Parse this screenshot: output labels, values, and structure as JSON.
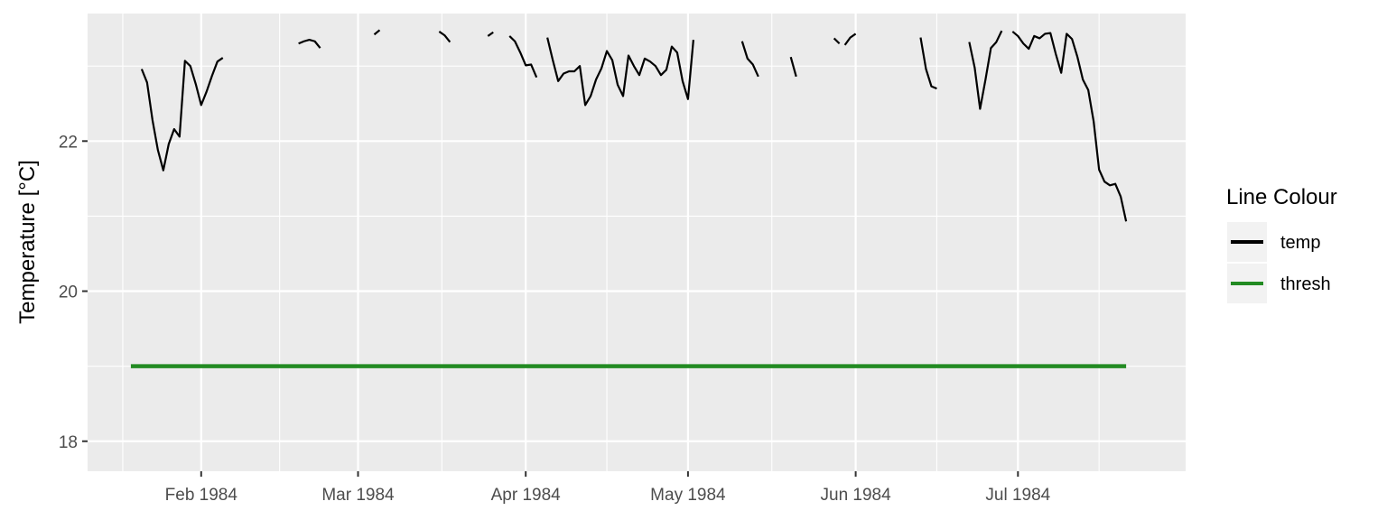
{
  "chart_data": {
    "type": "line",
    "title": "",
    "xlabel": "",
    "ylabel": "Temperature [°C]",
    "x_ticks": [
      {
        "date": "1984-02-01",
        "label": "Feb 1984"
      },
      {
        "date": "1984-03-01",
        "label": "Mar 1984"
      },
      {
        "date": "1984-04-01",
        "label": "Apr 1984"
      },
      {
        "date": "1984-05-01",
        "label": "May 1984"
      },
      {
        "date": "1984-06-01",
        "label": "Jun 1984"
      },
      {
        "date": "1984-07-01",
        "label": "Jul 1984"
      }
    ],
    "xlim": [
      "1984-01-11",
      "1984-08-01"
    ],
    "y_ticks": [
      18,
      20,
      22
    ],
    "ylim": [
      17.6,
      23.7
    ],
    "grid": true,
    "legend": {
      "title": "Line Colour",
      "position": "right",
      "entries": [
        {
          "label": "temp",
          "color": "#000000"
        },
        {
          "label": "thresh",
          "color": "#228b22"
        }
      ]
    },
    "series": [
      {
        "name": "temp",
        "color": "#000000",
        "segments": [
          [
            [
              "1984-01-21",
              22.96
            ],
            [
              "1984-01-22",
              22.78
            ],
            [
              "1984-01-23",
              22.28
            ],
            [
              "1984-01-24",
              21.88
            ],
            [
              "1984-01-25",
              21.61
            ],
            [
              "1984-01-26",
              21.96
            ],
            [
              "1984-01-27",
              22.16
            ],
            [
              "1984-01-28",
              22.06
            ],
            [
              "1984-01-29",
              23.07
            ],
            [
              "1984-01-30",
              23.0
            ],
            [
              "1984-01-31",
              22.76
            ],
            [
              "1984-02-01",
              22.48
            ],
            [
              "1984-02-02",
              22.66
            ],
            [
              "1984-02-03",
              22.87
            ],
            [
              "1984-02-04",
              23.06
            ],
            [
              "1984-02-05",
              23.11
            ]
          ],
          [
            [
              "1984-02-19",
              23.3
            ],
            [
              "1984-02-20",
              23.33
            ],
            [
              "1984-02-21",
              23.35
            ],
            [
              "1984-02-22",
              23.33
            ],
            [
              "1984-02-23",
              23.24
            ]
          ],
          [
            [
              "1984-03-04",
              23.42
            ],
            [
              "1984-03-05",
              23.48
            ]
          ],
          [
            [
              "1984-03-16",
              23.46
            ],
            [
              "1984-03-17",
              23.41
            ],
            [
              "1984-03-18",
              23.32
            ]
          ],
          [
            [
              "1984-03-25",
              23.4
            ],
            [
              "1984-03-26",
              23.45
            ]
          ],
          [
            [
              "1984-03-29",
              23.4
            ],
            [
              "1984-03-30",
              23.33
            ],
            [
              "1984-03-31",
              23.18
            ],
            [
              "1984-04-01",
              23.01
            ],
            [
              "1984-04-02",
              23.02
            ],
            [
              "1984-04-03",
              22.85
            ]
          ],
          [
            [
              "1984-04-05",
              23.38
            ],
            [
              "1984-04-06",
              23.08
            ],
            [
              "1984-04-07",
              22.8
            ],
            [
              "1984-04-08",
              22.9
            ],
            [
              "1984-04-09",
              22.93
            ],
            [
              "1984-04-10",
              22.93
            ],
            [
              "1984-04-11",
              23.0
            ],
            [
              "1984-04-12",
              22.48
            ],
            [
              "1984-04-13",
              22.6
            ],
            [
              "1984-04-14",
              22.82
            ],
            [
              "1984-04-15",
              22.97
            ],
            [
              "1984-04-16",
              23.2
            ],
            [
              "1984-04-17",
              23.08
            ],
            [
              "1984-04-18",
              22.75
            ],
            [
              "1984-04-19",
              22.6
            ],
            [
              "1984-04-20",
              23.14
            ],
            [
              "1984-04-21",
              23.0
            ],
            [
              "1984-04-22",
              22.88
            ],
            [
              "1984-04-23",
              23.1
            ],
            [
              "1984-04-24",
              23.06
            ],
            [
              "1984-04-25",
              23.0
            ],
            [
              "1984-04-26",
              22.88
            ],
            [
              "1984-04-27",
              22.95
            ],
            [
              "1984-04-28",
              23.26
            ],
            [
              "1984-04-29",
              23.18
            ],
            [
              "1984-04-30",
              22.8
            ],
            [
              "1984-05-01",
              22.56
            ],
            [
              "1984-05-02",
              23.35
            ]
          ],
          [
            [
              "1984-05-11",
              23.33
            ],
            [
              "1984-05-12",
              23.1
            ],
            [
              "1984-05-13",
              23.02
            ],
            [
              "1984-05-14",
              22.86
            ]
          ],
          [
            [
              "1984-05-20",
              23.12
            ],
            [
              "1984-05-21",
              22.86
            ]
          ],
          [
            [
              "1984-05-28",
              23.37
            ],
            [
              "1984-05-29",
              23.3
            ]
          ],
          [
            [
              "1984-05-30",
              23.28
            ],
            [
              "1984-05-31",
              23.38
            ],
            [
              "1984-06-01",
              23.43
            ]
          ],
          [
            [
              "1984-06-13",
              23.38
            ],
            [
              "1984-06-14",
              22.96
            ],
            [
              "1984-06-15",
              22.73
            ],
            [
              "1984-06-16",
              22.7
            ]
          ],
          [
            [
              "1984-06-22",
              23.32
            ],
            [
              "1984-06-23",
              22.98
            ],
            [
              "1984-06-24",
              22.43
            ],
            [
              "1984-06-25",
              22.82
            ],
            [
              "1984-06-26",
              23.24
            ],
            [
              "1984-06-27",
              23.32
            ],
            [
              "1984-06-28",
              23.47
            ]
          ],
          [
            [
              "1984-06-30",
              23.46
            ],
            [
              "1984-07-01",
              23.4
            ],
            [
              "1984-07-02",
              23.3
            ],
            [
              "1984-07-03",
              23.23
            ],
            [
              "1984-07-04",
              23.4
            ],
            [
              "1984-07-05",
              23.37
            ],
            [
              "1984-07-06",
              23.43
            ],
            [
              "1984-07-07",
              23.44
            ],
            [
              "1984-07-08",
              23.16
            ],
            [
              "1984-07-09",
              22.91
            ],
            [
              "1984-07-10",
              23.43
            ],
            [
              "1984-07-11",
              23.36
            ],
            [
              "1984-07-12",
              23.12
            ],
            [
              "1984-07-13",
              22.82
            ],
            [
              "1984-07-14",
              22.68
            ],
            [
              "1984-07-15",
              22.26
            ],
            [
              "1984-07-16",
              21.62
            ],
            [
              "1984-07-17",
              21.46
            ],
            [
              "1984-07-18",
              21.41
            ],
            [
              "1984-07-19",
              21.43
            ],
            [
              "1984-07-20",
              21.26
            ],
            [
              "1984-07-21",
              20.93
            ]
          ]
        ]
      },
      {
        "name": "thresh",
        "color": "#228b22",
        "points": [
          [
            "1984-01-19",
            19.0
          ],
          [
            "1984-07-21",
            19.0
          ]
        ]
      }
    ]
  }
}
